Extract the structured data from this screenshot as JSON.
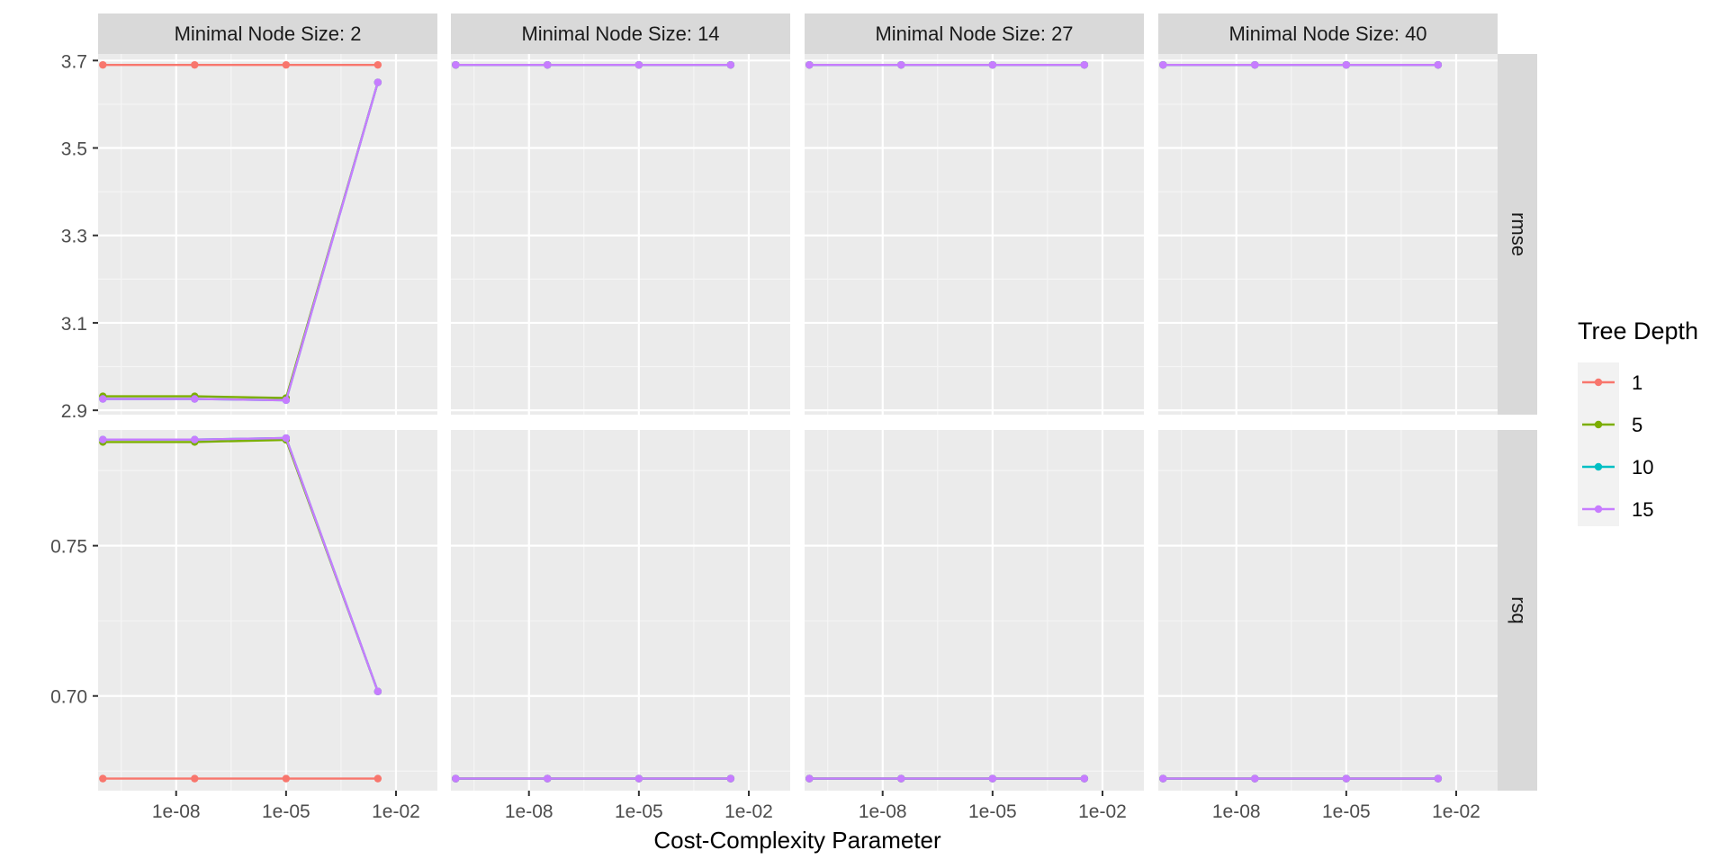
{
  "chart_data": {
    "type": "line",
    "title": "",
    "xlabel": "Cost-Complexity Parameter",
    "xscale": "log10",
    "xlim_log10": [
      -10.13,
      -0.87
    ],
    "x": [
      1e-10,
      3.2e-08,
      1e-05,
      0.0032
    ],
    "x_ticks": [
      {
        "value": 1e-08,
        "label": "1e-08"
      },
      {
        "value": 1e-05,
        "label": "1e-05"
      },
      {
        "value": 0.01,
        "label": "1e-02"
      }
    ],
    "columns": [
      {
        "label": "Minimal Node Size: 2",
        "min_n": 2
      },
      {
        "label": "Minimal Node Size: 14",
        "min_n": 14
      },
      {
        "label": "Minimal Node Size: 27",
        "min_n": 27
      },
      {
        "label": "Minimal Node Size: 40",
        "min_n": 40
      }
    ],
    "rows": [
      {
        "metric": "rmse",
        "ylim": [
          2.89,
          3.715
        ],
        "y_ticks": [
          {
            "value": 2.9,
            "label": "2.9"
          },
          {
            "value": 3.1,
            "label": "3.1"
          },
          {
            "value": 3.3,
            "label": "3.3"
          },
          {
            "value": 3.5,
            "label": "3.5"
          },
          {
            "value": 3.7,
            "label": "3.7"
          }
        ],
        "panels": [
          {
            "series": [
              {
                "name": "1",
                "values": [
                  3.69,
                  3.69,
                  3.69,
                  3.69
                ]
              },
              {
                "name": "5",
                "values": [
                  2.932,
                  2.932,
                  2.928,
                  3.65
                ]
              },
              {
                "name": "10",
                "values": [
                  2.926,
                  2.926,
                  2.923,
                  3.65
                ]
              },
              {
                "name": "15",
                "values": [
                  2.926,
                  2.926,
                  2.923,
                  3.65
                ]
              }
            ]
          },
          {
            "series": [
              {
                "name": "1",
                "values": [
                  3.69,
                  3.69,
                  3.69,
                  3.69
                ]
              },
              {
                "name": "5",
                "values": [
                  3.69,
                  3.69,
                  3.69,
                  3.69
                ]
              },
              {
                "name": "10",
                "values": [
                  3.69,
                  3.69,
                  3.69,
                  3.69
                ]
              },
              {
                "name": "15",
                "values": [
                  3.69,
                  3.69,
                  3.69,
                  3.69
                ]
              }
            ]
          },
          {
            "series": [
              {
                "name": "1",
                "values": [
                  3.69,
                  3.69,
                  3.69,
                  3.69
                ]
              },
              {
                "name": "5",
                "values": [
                  3.69,
                  3.69,
                  3.69,
                  3.69
                ]
              },
              {
                "name": "10",
                "values": [
                  3.69,
                  3.69,
                  3.69,
                  3.69
                ]
              },
              {
                "name": "15",
                "values": [
                  3.69,
                  3.69,
                  3.69,
                  3.69
                ]
              }
            ]
          },
          {
            "series": [
              {
                "name": "1",
                "values": [
                  3.69,
                  3.69,
                  3.69,
                  3.69
                ]
              },
              {
                "name": "5",
                "values": [
                  3.69,
                  3.69,
                  3.69,
                  3.69
                ]
              },
              {
                "name": "10",
                "values": [
                  3.69,
                  3.69,
                  3.69,
                  3.69
                ]
              },
              {
                "name": "15",
                "values": [
                  3.69,
                  3.69,
                  3.69,
                  3.69
                ]
              }
            ]
          }
        ]
      },
      {
        "metric": "rsq",
        "ylim": [
          0.6685,
          0.7885
        ],
        "y_ticks": [
          {
            "value": 0.7,
            "label": "0.70"
          },
          {
            "value": 0.75,
            "label": "0.75"
          }
        ],
        "panels": [
          {
            "series": [
              {
                "name": "1",
                "values": [
                  0.6725,
                  0.6725,
                  0.6725,
                  0.6725
                ]
              },
              {
                "name": "5",
                "values": [
                  0.7845,
                  0.7845,
                  0.7852,
                  0.7015
                ]
              },
              {
                "name": "10",
                "values": [
                  0.7853,
                  0.7853,
                  0.7858,
                  0.7015
                ]
              },
              {
                "name": "15",
                "values": [
                  0.7853,
                  0.7853,
                  0.7858,
                  0.7015
                ]
              }
            ]
          },
          {
            "series": [
              {
                "name": "1",
                "values": [
                  0.6725,
                  0.6725,
                  0.6725,
                  0.6725
                ]
              },
              {
                "name": "5",
                "values": [
                  0.6725,
                  0.6725,
                  0.6725,
                  0.6725
                ]
              },
              {
                "name": "10",
                "values": [
                  0.6725,
                  0.6725,
                  0.6725,
                  0.6725
                ]
              },
              {
                "name": "15",
                "values": [
                  0.6725,
                  0.6725,
                  0.6725,
                  0.6725
                ]
              }
            ]
          },
          {
            "series": [
              {
                "name": "1",
                "values": [
                  0.6725,
                  0.6725,
                  0.6725,
                  0.6725
                ]
              },
              {
                "name": "5",
                "values": [
                  0.6725,
                  0.6725,
                  0.6725,
                  0.6725
                ]
              },
              {
                "name": "10",
                "values": [
                  0.6725,
                  0.6725,
                  0.6725,
                  0.6725
                ]
              },
              {
                "name": "15",
                "values": [
                  0.6725,
                  0.6725,
                  0.6725,
                  0.6725
                ]
              }
            ]
          },
          {
            "series": [
              {
                "name": "1",
                "values": [
                  0.6725,
                  0.6725,
                  0.6725,
                  0.6725
                ]
              },
              {
                "name": "5",
                "values": [
                  0.6725,
                  0.6725,
                  0.6725,
                  0.6725
                ]
              },
              {
                "name": "10",
                "values": [
                  0.6725,
                  0.6725,
                  0.6725,
                  0.6725
                ]
              },
              {
                "name": "15",
                "values": [
                  0.6725,
                  0.6725,
                  0.6725,
                  0.6725
                ]
              }
            ]
          }
        ]
      }
    ],
    "legend": {
      "title": "Tree Depth",
      "position": "right",
      "items": [
        {
          "label": "1",
          "color": "#F8766D"
        },
        {
          "label": "5",
          "color": "#7CAE00"
        },
        {
          "label": "10",
          "color": "#00BFC4"
        },
        {
          "label": "15",
          "color": "#C77CFF"
        }
      ]
    },
    "grid": true,
    "panel_background": "#EBEBEB",
    "strip_background": "#D9D9D9"
  }
}
